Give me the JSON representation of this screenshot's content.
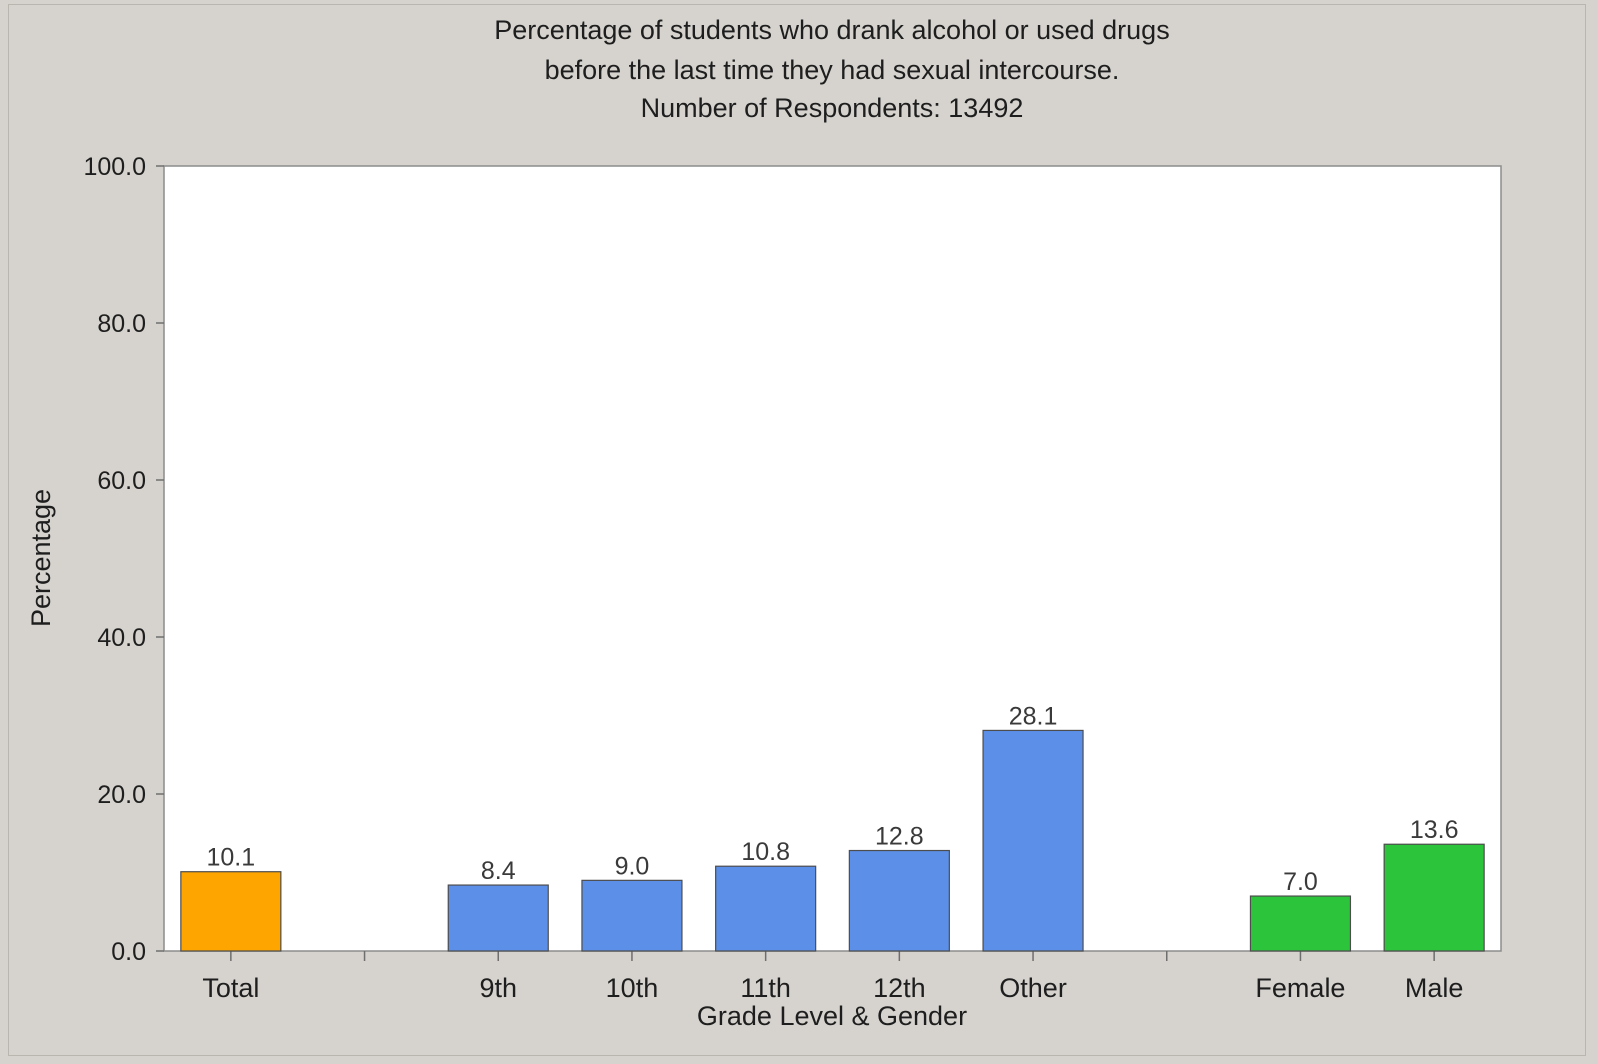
{
  "chart_data": {
    "type": "bar",
    "title": "Percentage of students who drank alcohol or used drugs",
    "subtitle": "before the last time they had sexual intercourse.",
    "respondents_label": "Number of Respondents: 13492",
    "xlabel": "Grade Level & Gender",
    "ylabel": "Percentage",
    "ylim": [
      0,
      100
    ],
    "yticks": [
      "0.0",
      "20.0",
      "40.0",
      "60.0",
      "80.0",
      "100.0"
    ],
    "grid": false,
    "categories": [
      "Total",
      "9th",
      "10th",
      "11th",
      "12th",
      "Other",
      "Female",
      "Male"
    ],
    "values": [
      10.1,
      8.4,
      9.0,
      10.8,
      12.8,
      28.1,
      7.0,
      13.6
    ],
    "value_labels": [
      "10.1",
      "8.4",
      "9.0",
      "10.8",
      "12.8",
      "28.1",
      "7.0",
      "13.6"
    ],
    "groups": [
      {
        "categories": [
          "Total"
        ],
        "color": "#ffa500"
      },
      {
        "categories": [
          "9th",
          "10th",
          "11th",
          "12th",
          "Other"
        ],
        "color": "#5b8fe8"
      },
      {
        "categories": [
          "Female",
          "Male"
        ],
        "color": "#2bc43b"
      }
    ]
  }
}
